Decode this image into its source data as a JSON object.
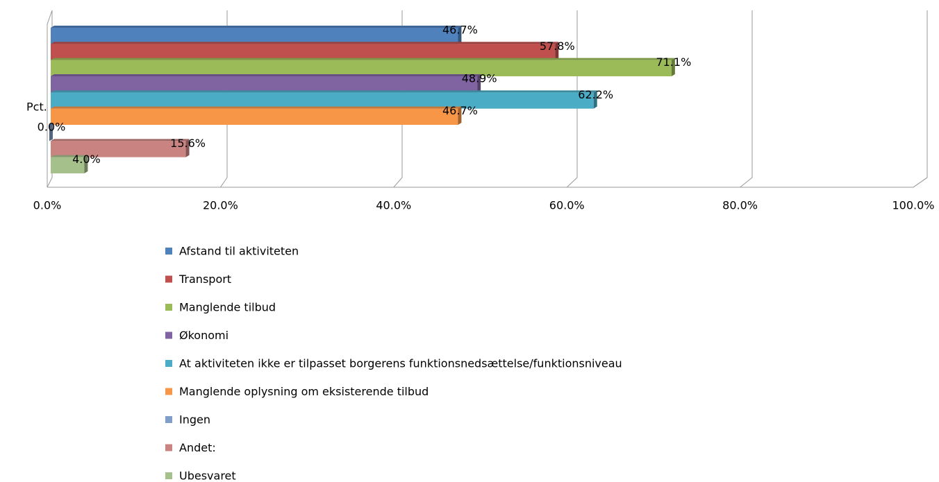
{
  "chart_data": {
    "type": "bar",
    "categories": [
      "Pct."
    ],
    "series": [
      {
        "name": "Afstand til aktiviteten",
        "color": "#4f81bd",
        "values": [
          46.7
        ],
        "value_labels": [
          "46.7%"
        ]
      },
      {
        "name": "Transport",
        "color": "#c0504d",
        "values": [
          57.8
        ],
        "value_labels": [
          "57.8%"
        ]
      },
      {
        "name": "Manglende tilbud",
        "color": "#9bbb59",
        "values": [
          71.1
        ],
        "value_labels": [
          "71.1%"
        ]
      },
      {
        "name": "Økonomi",
        "color": "#8064a2",
        "values": [
          48.9
        ],
        "value_labels": [
          "48.9%"
        ]
      },
      {
        "name": "At aktiviteten ikke er tilpasset borgerens funktionsnedsættelse/funktionsniveau",
        "color": "#4bacc6",
        "values": [
          62.2
        ],
        "value_labels": [
          "62.2%"
        ]
      },
      {
        "name": "Manglende oplysning om eksisterende tilbud",
        "color": "#f79646",
        "values": [
          46.7
        ],
        "value_labels": [
          "46.7%"
        ]
      },
      {
        "name": "Ingen",
        "color": "#7f9fc8",
        "values": [
          0.0
        ],
        "value_labels": [
          "0.0%"
        ]
      },
      {
        "name": "Andet:",
        "color": "#c98482",
        "values": [
          15.6
        ],
        "value_labels": [
          "15.6%"
        ]
      },
      {
        "name": "Ubesvaret",
        "color": "#a5c08a",
        "values": [
          4.0
        ],
        "value_labels": [
          "4.0%"
        ]
      }
    ],
    "xlim": [
      0,
      100
    ],
    "xticks": [
      {
        "value": 0,
        "label": "0.0%"
      },
      {
        "value": 20,
        "label": "20.0%"
      },
      {
        "value": 40,
        "label": "40.0%"
      },
      {
        "value": 60,
        "label": "60.0%"
      },
      {
        "value": 80,
        "label": "80.0%"
      },
      {
        "value": 100,
        "label": "100.0%"
      }
    ],
    "grid": true,
    "legend": "bottom"
  }
}
